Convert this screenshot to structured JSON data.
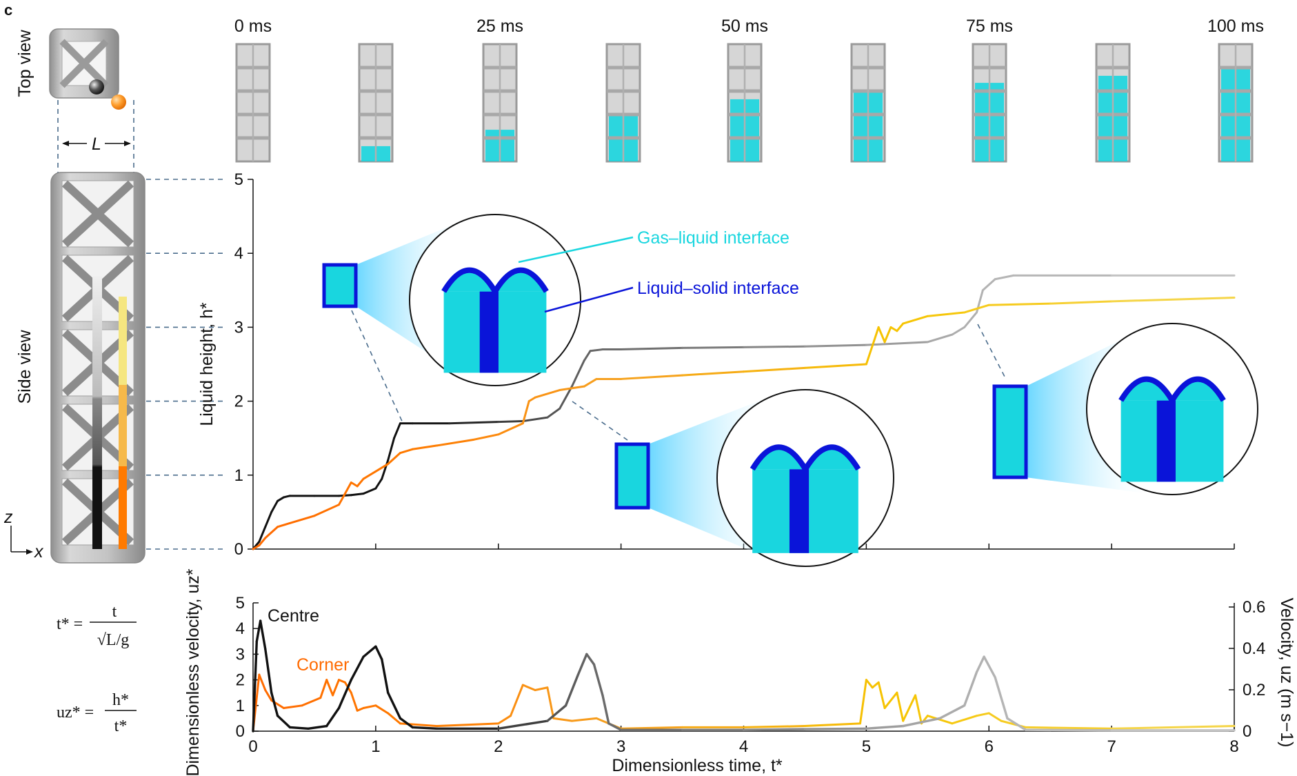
{
  "panel_letter": "c",
  "time_labels": [
    "0 ms",
    "25 ms",
    "50 ms",
    "75 ms",
    "100 ms"
  ],
  "fill_levels": [
    0.0,
    0.13,
    0.27,
    0.4,
    0.53,
    0.6,
    0.67,
    0.73,
    0.8
  ],
  "views": {
    "top": "Top view",
    "side": "Side view",
    "length": "L"
  },
  "axes_glyph": {
    "z": "z",
    "x": "x"
  },
  "colors": {
    "cyan": "#19d6df",
    "blue": "#0a14d9",
    "orange": "#ff7a00",
    "yellow": "#f6c400",
    "black": "#111111",
    "grey": "#9a9a9a"
  },
  "annotations": {
    "gas_liquid": "Gas–liquid interface",
    "liquid_solid": "Liquid–solid interface",
    "centre": "Centre",
    "corner": "Corner"
  },
  "equations": {
    "t_star_lhs": "t* =",
    "t_star_num": "t",
    "t_star_den": "√L/g",
    "u_star_lhs": "uz* =",
    "u_star_num": "h*",
    "u_star_den": "t*"
  },
  "chart_data": [
    {
      "type": "line",
      "ylabel": "Liquid height, h*",
      "xlim": [
        0,
        8
      ],
      "ylim": [
        0,
        5
      ],
      "yticks": [
        "0",
        "1",
        "2",
        "3",
        "4",
        "5"
      ],
      "series": [
        {
          "name": "Centre",
          "x": [
            0,
            0.05,
            0.1,
            0.15,
            0.2,
            0.25,
            0.3,
            0.5,
            0.7,
            0.8,
            0.9,
            1.0,
            1.05,
            1.1,
            1.15,
            1.2,
            1.3,
            1.6,
            2.0,
            2.2,
            2.4,
            2.5,
            2.6,
            2.7,
            2.75,
            2.85,
            3.0,
            3.5,
            4.0,
            4.5,
            5.0,
            5.5,
            5.7,
            5.8,
            5.9,
            5.95,
            6.05,
            6.2,
            7.0,
            8.0
          ],
          "y": [
            0,
            0.1,
            0.3,
            0.5,
            0.65,
            0.7,
            0.72,
            0.72,
            0.72,
            0.73,
            0.75,
            0.82,
            0.95,
            1.2,
            1.5,
            1.7,
            1.7,
            1.7,
            1.72,
            1.73,
            1.78,
            1.9,
            2.2,
            2.55,
            2.68,
            2.7,
            2.7,
            2.72,
            2.73,
            2.74,
            2.76,
            2.8,
            2.9,
            3.0,
            3.2,
            3.5,
            3.65,
            3.7,
            3.7,
            3.7
          ]
        },
        {
          "name": "Corner",
          "x": [
            0,
            0.05,
            0.1,
            0.2,
            0.3,
            0.5,
            0.7,
            0.75,
            0.8,
            0.85,
            0.9,
            1.0,
            1.1,
            1.2,
            1.3,
            1.5,
            1.8,
            2.0,
            2.2,
            2.25,
            2.3,
            2.5,
            2.7,
            2.8,
            3.0,
            3.5,
            4.0,
            4.5,
            5.0,
            5.1,
            5.15,
            5.2,
            5.25,
            5.3,
            5.5,
            5.8,
            5.9,
            6.0,
            6.5,
            7.0,
            8.0
          ],
          "y": [
            0,
            0.05,
            0.15,
            0.3,
            0.35,
            0.45,
            0.6,
            0.75,
            0.9,
            0.85,
            0.95,
            1.05,
            1.15,
            1.3,
            1.35,
            1.4,
            1.48,
            1.55,
            1.7,
            2.0,
            2.05,
            2.15,
            2.2,
            2.3,
            2.3,
            2.35,
            2.4,
            2.45,
            2.5,
            3.0,
            2.8,
            3.0,
            2.95,
            3.05,
            3.15,
            3.2,
            3.25,
            3.3,
            3.32,
            3.35,
            3.4
          ]
        }
      ]
    },
    {
      "type": "line",
      "xlabel": "Dimensionless time, t*",
      "ylabel": "Dimensionless velocity, uz*",
      "ylabel_right": "Velocity, uz (m s−1)",
      "xlim": [
        0,
        8
      ],
      "ylim": [
        0,
        5
      ],
      "xticks": [
        "0",
        "1",
        "2",
        "3",
        "4",
        "5",
        "6",
        "7",
        "8"
      ],
      "yticks": [
        "0",
        "1",
        "2",
        "3",
        "4",
        "5"
      ],
      "yticks_right": [
        "0",
        "0.2",
        "0.4",
        "0.6"
      ],
      "series": [
        {
          "name": "Centre",
          "x": [
            0,
            0.03,
            0.06,
            0.1,
            0.15,
            0.2,
            0.3,
            0.45,
            0.6,
            0.7,
            0.8,
            0.9,
            1.0,
            1.05,
            1.1,
            1.2,
            1.3,
            1.5,
            2.0,
            2.4,
            2.55,
            2.65,
            2.72,
            2.78,
            2.85,
            2.9,
            3.0,
            3.5,
            4.0,
            4.5,
            5.0,
            5.3,
            5.6,
            5.8,
            5.9,
            5.96,
            6.05,
            6.15,
            6.3,
            7.0,
            8.0
          ],
          "y": [
            0,
            3.5,
            4.3,
            3.2,
            1.5,
            0.6,
            0.15,
            0.1,
            0.2,
            0.9,
            2.0,
            2.9,
            3.3,
            2.8,
            1.5,
            0.5,
            0.15,
            0.1,
            0.1,
            0.4,
            1.0,
            2.2,
            3.0,
            2.6,
            1.4,
            0.3,
            0.05,
            0.05,
            0.05,
            0.08,
            0.1,
            0.2,
            0.5,
            1.0,
            2.3,
            2.9,
            2.1,
            0.5,
            0.05,
            0.03,
            0.03
          ]
        },
        {
          "name": "Corner",
          "x": [
            0,
            0.05,
            0.1,
            0.15,
            0.25,
            0.4,
            0.55,
            0.6,
            0.65,
            0.7,
            0.75,
            0.8,
            0.85,
            0.9,
            1.0,
            1.1,
            1.2,
            1.5,
            2.0,
            2.1,
            2.2,
            2.3,
            2.4,
            2.45,
            2.6,
            2.8,
            2.95,
            3.0,
            3.5,
            4.0,
            4.5,
            4.95,
            5.0,
            5.05,
            5.1,
            5.15,
            5.25,
            5.3,
            5.4,
            5.45,
            5.5,
            5.7,
            5.9,
            6.0,
            6.1,
            6.3,
            7.0,
            8.0
          ],
          "y": [
            0,
            2.2,
            1.6,
            1.2,
            0.9,
            1.0,
            1.3,
            2.0,
            1.4,
            2.0,
            1.9,
            1.5,
            0.8,
            0.9,
            1.0,
            0.7,
            0.3,
            0.2,
            0.3,
            0.6,
            1.8,
            1.6,
            1.7,
            0.5,
            0.4,
            0.5,
            0.2,
            0.1,
            0.15,
            0.15,
            0.2,
            0.3,
            2.0,
            1.7,
            1.9,
            0.9,
            1.5,
            0.4,
            1.4,
            0.3,
            0.6,
            0.3,
            0.6,
            0.7,
            0.4,
            0.15,
            0.1,
            0.2
          ]
        }
      ]
    }
  ]
}
